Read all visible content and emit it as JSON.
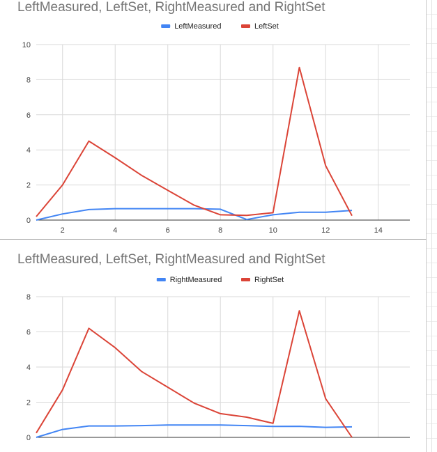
{
  "charts": [
    {
      "title": "LeftMeasured, LeftSet, RightMeasured and RightSet",
      "legend": [
        {
          "label": "LeftMeasured",
          "color": "#4285f4"
        },
        {
          "label": "LeftSet",
          "color": "#db4437"
        }
      ]
    },
    {
      "title": "LeftMeasured, LeftSet, RightMeasured and RightSet",
      "legend": [
        {
          "label": "RightMeasured",
          "color": "#4285f4"
        },
        {
          "label": "RightSet",
          "color": "#db4437"
        }
      ]
    }
  ],
  "chart_data": [
    {
      "type": "line",
      "title": "LeftMeasured, LeftSet, RightMeasured and RightSet",
      "legend_position": "top",
      "grid": true,
      "xlim": [
        1,
        15.2
      ],
      "ylim": [
        0,
        10
      ],
      "x_ticks": [
        2,
        4,
        6,
        8,
        10,
        12,
        14
      ],
      "y_ticks": [
        0,
        2,
        4,
        6,
        8,
        10
      ],
      "x": [
        1,
        2,
        3,
        4,
        5,
        6,
        7,
        8,
        9,
        10,
        11,
        12,
        13
      ],
      "series": [
        {
          "name": "LeftMeasured",
          "color": "#4285f4",
          "values": [
            0,
            0.35,
            0.6,
            0.65,
            0.65,
            0.65,
            0.65,
            0.62,
            0.03,
            0.3,
            0.45,
            0.45,
            0.55
          ]
        },
        {
          "name": "LeftSet",
          "color": "#db4437",
          "values": [
            0.2,
            2.0,
            4.5,
            3.55,
            2.55,
            1.7,
            0.85,
            0.3,
            0.27,
            0.42,
            8.7,
            3.1,
            0.25
          ]
        }
      ]
    },
    {
      "type": "line",
      "title": "LeftMeasured, LeftSet, RightMeasured and RightSet",
      "legend_position": "top",
      "grid": true,
      "xlim": [
        1,
        15.2
      ],
      "ylim": [
        0,
        8
      ],
      "x_ticks": [],
      "y_ticks": [
        0,
        2,
        4,
        6,
        8
      ],
      "x": [
        1,
        2,
        3,
        4,
        5,
        6,
        7,
        8,
        9,
        10,
        11,
        12,
        13
      ],
      "series": [
        {
          "name": "RightMeasured",
          "color": "#4285f4",
          "values": [
            0,
            0.45,
            0.65,
            0.65,
            0.67,
            0.7,
            0.7,
            0.7,
            0.67,
            0.62,
            0.63,
            0.57,
            0.6
          ]
        },
        {
          "name": "RightSet",
          "color": "#db4437",
          "values": [
            0.25,
            2.7,
            6.2,
            5.1,
            3.75,
            2.85,
            1.95,
            1.35,
            1.15,
            0.8,
            7.2,
            2.2,
            0
          ]
        }
      ]
    }
  ]
}
